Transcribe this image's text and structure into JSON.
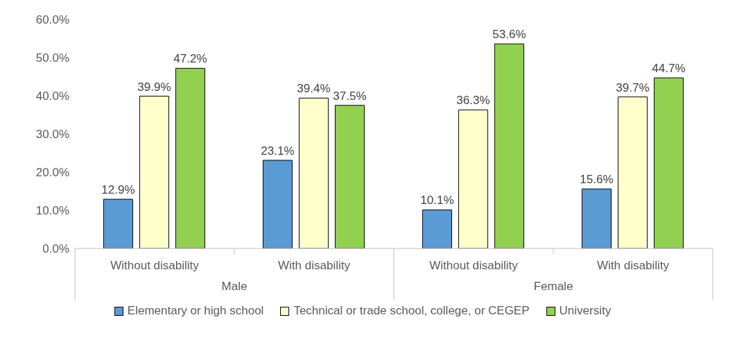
{
  "chart_data": {
    "type": "bar",
    "categories": [
      "Without disability",
      "With disability",
      "Without disability",
      "With disability"
    ],
    "annotations": [
      "Male",
      "Female"
    ],
    "series": [
      {
        "name": "Elementary or high school",
        "color": "#5b9bd5",
        "values": [
          12.9,
          23.1,
          10.1,
          15.6
        ],
        "value_labels": [
          "12.9%",
          "23.1%",
          "10.1%",
          "15.6%"
        ]
      },
      {
        "name": "Technical or trade school, college, or CEGEP",
        "color": "#ffffcc",
        "values": [
          39.9,
          39.4,
          36.3,
          39.7
        ],
        "value_labels": [
          "39.9%",
          "39.4%",
          "36.3%",
          "39.7%"
        ]
      },
      {
        "name": "University",
        "color": "#92d050",
        "values": [
          47.2,
          37.5,
          53.6,
          44.7
        ],
        "value_labels": [
          "47.2%",
          "37.5%",
          "53.6%",
          "44.7%"
        ]
      }
    ],
    "ylim": [
      0,
      60
    ],
    "yticks": [
      {
        "value": 0,
        "label": "0.0%"
      },
      {
        "value": 10,
        "label": "10.0%"
      },
      {
        "value": 20,
        "label": "20.0%"
      },
      {
        "value": 30,
        "label": "30.0%"
      },
      {
        "value": 40,
        "label": "40.0%"
      },
      {
        "value": 50,
        "label": "50.0%"
      },
      {
        "value": 60,
        "label": "60.0%"
      }
    ],
    "grid": false,
    "legend": "bottom"
  }
}
